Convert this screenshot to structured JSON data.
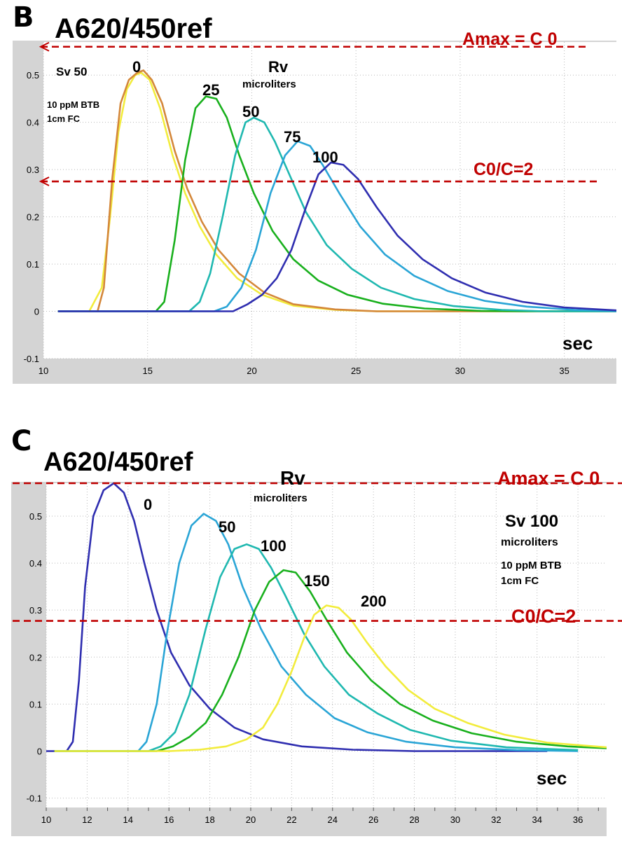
{
  "colors": {
    "ref_line": "#c00000",
    "frame_bg": "#d4d4d4",
    "plot_bg": "#ffffff",
    "grid": "#b9b9b9"
  },
  "chart_data": [
    {
      "panel": "B",
      "type": "line",
      "title": "A620/450ref",
      "xlabel": "sec",
      "xlim": [
        10,
        37.5
      ],
      "ylim": [
        -0.1,
        0.57
      ],
      "x_ticks": [
        "10",
        "15",
        "20",
        "25",
        "30",
        "35"
      ],
      "y_ticks": [
        "-0.1",
        "0",
        "0.1",
        "0.2",
        "0.3",
        "0.4",
        "0.5"
      ],
      "grid": true,
      "legend_title": "Rv",
      "legend_subtitle": "microliters",
      "notes": [
        "Sv 50",
        "10 ppM BTB",
        "1cm FC"
      ],
      "ref_lines": [
        {
          "y": 0.56,
          "label": "Amax = C 0"
        },
        {
          "y": 0.275,
          "label": "C0/C=2"
        }
      ],
      "series": [
        {
          "name": "0",
          "color": "#f2ec3c",
          "peak_x": 14.7,
          "peak_y": 0.505,
          "points": [
            [
              10.7,
              0
            ],
            [
              12.2,
              0
            ],
            [
              12.8,
              0.05
            ],
            [
              13.2,
              0.2
            ],
            [
              13.6,
              0.38
            ],
            [
              14.0,
              0.47
            ],
            [
              14.4,
              0.5
            ],
            [
              14.7,
              0.505
            ],
            [
              15.1,
              0.49
            ],
            [
              15.6,
              0.43
            ],
            [
              16.2,
              0.33
            ],
            [
              16.8,
              0.25
            ],
            [
              17.5,
              0.18
            ],
            [
              18.3,
              0.12
            ],
            [
              19.3,
              0.07
            ],
            [
              20.5,
              0.035
            ],
            [
              22,
              0.012
            ],
            [
              24,
              0.003
            ],
            [
              26,
              0
            ],
            [
              37.5,
              0
            ]
          ]
        },
        {
          "name": "0",
          "color": "#d4873a",
          "peak_x": 14.7,
          "peak_y": 0.51,
          "points": [
            [
              10.7,
              0
            ],
            [
              12.6,
              0
            ],
            [
              12.9,
              0.05
            ],
            [
              13.3,
              0.28
            ],
            [
              13.7,
              0.44
            ],
            [
              14.1,
              0.49
            ],
            [
              14.5,
              0.505
            ],
            [
              14.8,
              0.51
            ],
            [
              15.2,
              0.49
            ],
            [
              15.7,
              0.44
            ],
            [
              16.3,
              0.34
            ],
            [
              16.9,
              0.26
            ],
            [
              17.6,
              0.19
            ],
            [
              18.4,
              0.13
            ],
            [
              19.4,
              0.08
            ],
            [
              20.6,
              0.04
            ],
            [
              22,
              0.015
            ],
            [
              24,
              0.004
            ],
            [
              26,
              0
            ],
            [
              37.5,
              0
            ]
          ]
        },
        {
          "name": "25",
          "color": "#19b01d",
          "peak_x": 17.8,
          "peak_y": 0.455,
          "points": [
            [
              10.7,
              0
            ],
            [
              15.4,
              0
            ],
            [
              15.8,
              0.02
            ],
            [
              16.3,
              0.15
            ],
            [
              16.8,
              0.32
            ],
            [
              17.3,
              0.43
            ],
            [
              17.8,
              0.455
            ],
            [
              18.3,
              0.45
            ],
            [
              18.8,
              0.41
            ],
            [
              19.4,
              0.33
            ],
            [
              20.1,
              0.25
            ],
            [
              21.0,
              0.17
            ],
            [
              22.0,
              0.11
            ],
            [
              23.2,
              0.065
            ],
            [
              24.6,
              0.035
            ],
            [
              26.3,
              0.016
            ],
            [
              28.3,
              0.006
            ],
            [
              31,
              0.001
            ],
            [
              33,
              0
            ],
            [
              37.5,
              0
            ]
          ]
        },
        {
          "name": "50",
          "color": "#1fb8b0",
          "peak_x": 20.1,
          "peak_y": 0.41,
          "points": [
            [
              10.7,
              0
            ],
            [
              17.0,
              0
            ],
            [
              17.5,
              0.02
            ],
            [
              18.0,
              0.08
            ],
            [
              18.6,
              0.2
            ],
            [
              19.2,
              0.33
            ],
            [
              19.7,
              0.4
            ],
            [
              20.1,
              0.41
            ],
            [
              20.6,
              0.4
            ],
            [
              21.1,
              0.36
            ],
            [
              21.8,
              0.29
            ],
            [
              22.6,
              0.21
            ],
            [
              23.6,
              0.14
            ],
            [
              24.8,
              0.09
            ],
            [
              26.2,
              0.05
            ],
            [
              27.8,
              0.026
            ],
            [
              29.7,
              0.011
            ],
            [
              32,
              0.003
            ],
            [
              34,
              0
            ],
            [
              37.5,
              0
            ]
          ]
        },
        {
          "name": "75",
          "color": "#2aa5d6",
          "peak_x": 22.2,
          "peak_y": 0.36,
          "points": [
            [
              10.7,
              0
            ],
            [
              18.2,
              0
            ],
            [
              18.8,
              0.01
            ],
            [
              19.5,
              0.05
            ],
            [
              20.2,
              0.13
            ],
            [
              20.9,
              0.25
            ],
            [
              21.6,
              0.33
            ],
            [
              22.2,
              0.36
            ],
            [
              22.8,
              0.35
            ],
            [
              23.4,
              0.31
            ],
            [
              24.2,
              0.25
            ],
            [
              25.2,
              0.18
            ],
            [
              26.4,
              0.12
            ],
            [
              27.8,
              0.075
            ],
            [
              29.4,
              0.043
            ],
            [
              31.2,
              0.022
            ],
            [
              33.2,
              0.01
            ],
            [
              35.5,
              0.003
            ],
            [
              37.5,
              0
            ]
          ]
        },
        {
          "name": "100",
          "color": "#2f2eb0",
          "peak_x": 23.8,
          "peak_y": 0.315,
          "points": [
            [
              10.7,
              0
            ],
            [
              19.1,
              0
            ],
            [
              19.8,
              0.015
            ],
            [
              20.5,
              0.035
            ],
            [
              21.2,
              0.07
            ],
            [
              21.9,
              0.13
            ],
            [
              22.6,
              0.22
            ],
            [
              23.2,
              0.29
            ],
            [
              23.8,
              0.315
            ],
            [
              24.4,
              0.31
            ],
            [
              25.1,
              0.28
            ],
            [
              26.0,
              0.22
            ],
            [
              27.0,
              0.16
            ],
            [
              28.2,
              0.11
            ],
            [
              29.6,
              0.07
            ],
            [
              31.2,
              0.04
            ],
            [
              33.0,
              0.02
            ],
            [
              35.0,
              0.008
            ],
            [
              37.5,
              0.002
            ]
          ]
        }
      ],
      "series_labels": [
        "0",
        "25",
        "50",
        "75",
        "100"
      ]
    },
    {
      "panel": "C",
      "type": "line",
      "title": "A620/450ref",
      "xlabel": "sec",
      "xlim": [
        10,
        37.4
      ],
      "ylim": [
        -0.12,
        0.57
      ],
      "x_ticks": [
        "10",
        "12",
        "14",
        "16",
        "18",
        "20",
        "22",
        "24",
        "26",
        "28",
        "30",
        "32",
        "34",
        "36"
      ],
      "y_ticks": [
        "-0.1",
        "0",
        "0.1",
        "0.2",
        "0.3",
        "0.4",
        "0.5"
      ],
      "grid": true,
      "legend_title": "Rv",
      "legend_subtitle": "microliters",
      "notes": [
        "Sv 100",
        "microliters",
        "10 ppM BTB",
        "1cm FC"
      ],
      "ref_lines": [
        {
          "y": 0.57,
          "label": "Amax = C 0"
        },
        {
          "y": 0.277,
          "label": "C0/C=2"
        }
      ],
      "series": [
        {
          "name": "0",
          "color": "#2f2eb0",
          "peak_x": 13.3,
          "peak_y": 0.57,
          "points": [
            [
              10.0,
              0
            ],
            [
              11.0,
              0
            ],
            [
              11.3,
              0.02
            ],
            [
              11.6,
              0.15
            ],
            [
              11.9,
              0.35
            ],
            [
              12.3,
              0.5
            ],
            [
              12.8,
              0.555
            ],
            [
              13.3,
              0.57
            ],
            [
              13.8,
              0.55
            ],
            [
              14.3,
              0.49
            ],
            [
              14.8,
              0.4
            ],
            [
              15.4,
              0.3
            ],
            [
              16.1,
              0.21
            ],
            [
              17.0,
              0.14
            ],
            [
              18.0,
              0.09
            ],
            [
              19.2,
              0.05
            ],
            [
              20.6,
              0.025
            ],
            [
              22.5,
              0.01
            ],
            [
              25,
              0.003
            ],
            [
              28,
              0
            ],
            [
              34.5,
              0
            ]
          ]
        },
        {
          "name": "50",
          "color": "#2aa5d6",
          "peak_x": 17.7,
          "peak_y": 0.505,
          "points": [
            [
              10.4,
              0
            ],
            [
              14.5,
              0
            ],
            [
              14.9,
              0.02
            ],
            [
              15.4,
              0.1
            ],
            [
              15.9,
              0.25
            ],
            [
              16.5,
              0.4
            ],
            [
              17.1,
              0.48
            ],
            [
              17.7,
              0.505
            ],
            [
              18.3,
              0.49
            ],
            [
              18.9,
              0.44
            ],
            [
              19.6,
              0.35
            ],
            [
              20.5,
              0.26
            ],
            [
              21.5,
              0.18
            ],
            [
              22.7,
              0.12
            ],
            [
              24.1,
              0.07
            ],
            [
              25.7,
              0.04
            ],
            [
              27.6,
              0.02
            ],
            [
              30,
              0.008
            ],
            [
              33,
              0.002
            ],
            [
              36,
              0
            ]
          ]
        },
        {
          "name": "100",
          "color": "#1fb8b0",
          "peak_x": 19.8,
          "peak_y": 0.44,
          "points": [
            [
              10.4,
              0
            ],
            [
              15.0,
              0
            ],
            [
              15.6,
              0.01
            ],
            [
              16.3,
              0.04
            ],
            [
              17.0,
              0.12
            ],
            [
              17.8,
              0.26
            ],
            [
              18.5,
              0.37
            ],
            [
              19.2,
              0.43
            ],
            [
              19.8,
              0.44
            ],
            [
              20.4,
              0.43
            ],
            [
              21.0,
              0.39
            ],
            [
              21.7,
              0.33
            ],
            [
              22.6,
              0.25
            ],
            [
              23.6,
              0.18
            ],
            [
              24.8,
              0.12
            ],
            [
              26.2,
              0.08
            ],
            [
              27.8,
              0.045
            ],
            [
              29.8,
              0.022
            ],
            [
              32.5,
              0.008
            ],
            [
              36,
              0.002
            ]
          ]
        },
        {
          "name": "150",
          "color": "#19b01d",
          "peak_x": 21.6,
          "peak_y": 0.385,
          "points": [
            [
              10.4,
              0
            ],
            [
              15.4,
              0
            ],
            [
              16.2,
              0.01
            ],
            [
              17.0,
              0.03
            ],
            [
              17.8,
              0.06
            ],
            [
              18.6,
              0.12
            ],
            [
              19.4,
              0.2
            ],
            [
              20.2,
              0.3
            ],
            [
              20.9,
              0.36
            ],
            [
              21.6,
              0.385
            ],
            [
              22.2,
              0.38
            ],
            [
              22.9,
              0.34
            ],
            [
              23.7,
              0.28
            ],
            [
              24.7,
              0.21
            ],
            [
              25.9,
              0.15
            ],
            [
              27.3,
              0.1
            ],
            [
              28.9,
              0.065
            ],
            [
              30.8,
              0.038
            ],
            [
              33.0,
              0.02
            ],
            [
              35.5,
              0.01
            ],
            [
              37.4,
              0.006
            ]
          ]
        },
        {
          "name": "200",
          "color": "#f2ec3c",
          "peak_x": 23.7,
          "peak_y": 0.31,
          "points": [
            [
              10.4,
              0
            ],
            [
              16.0,
              0
            ],
            [
              17.5,
              0.003
            ],
            [
              18.8,
              0.01
            ],
            [
              19.8,
              0.025
            ],
            [
              20.6,
              0.05
            ],
            [
              21.3,
              0.1
            ],
            [
              22.0,
              0.17
            ],
            [
              22.6,
              0.24
            ],
            [
              23.1,
              0.29
            ],
            [
              23.7,
              0.31
            ],
            [
              24.3,
              0.305
            ],
            [
              24.9,
              0.28
            ],
            [
              25.7,
              0.23
            ],
            [
              26.6,
              0.18
            ],
            [
              27.7,
              0.13
            ],
            [
              29.0,
              0.09
            ],
            [
              30.6,
              0.06
            ],
            [
              32.4,
              0.035
            ],
            [
              34.5,
              0.018
            ],
            [
              37.4,
              0.008
            ]
          ]
        }
      ],
      "series_labels": [
        "0",
        "50",
        "100",
        "150",
        "200"
      ]
    }
  ]
}
